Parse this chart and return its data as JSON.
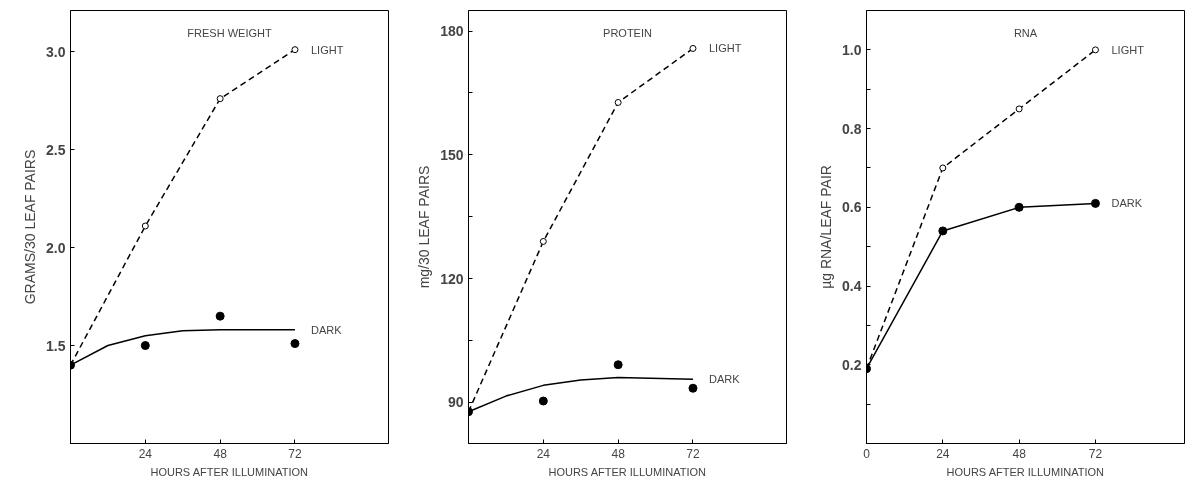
{
  "chart_data": [
    {
      "type": "line",
      "title": "FRESH WEIGHT",
      "xlabel": "HOURS AFTER ILLUMINATION",
      "ylabel": "GRAMS/30 LEAF PAIRS",
      "xlim": [
        0,
        102
      ],
      "ylim": [
        1.0,
        3.21
      ],
      "xticks": [
        24,
        48,
        72
      ],
      "yticks": [
        1.5,
        {
          "value": 2,
          "label": "2.0"
        },
        2.5,
        {
          "value": 3,
          "label": "3.0"
        }
      ],
      "grid": false,
      "series": [
        {
          "name": "LIGHT",
          "color": "#000000",
          "x": [
            0,
            24,
            48,
            72
          ],
          "values": [
            1.4,
            2.11,
            2.76,
            3.01
          ],
          "marker": "circle",
          "line_style": "dashed"
        },
        {
          "type": "scatter",
          "color": "#000000",
          "x": [
            0,
            24,
            48,
            72
          ],
          "values": [
            1.4,
            1.5,
            1.65,
            1.51
          ],
          "marker": "circle"
        },
        {
          "name": "DARK",
          "color": "#000000",
          "x": [
            0,
            12,
            24,
            36,
            48,
            72
          ],
          "values": [
            1.4,
            1.5,
            1.55,
            1.575,
            1.58,
            1.58
          ],
          "marker": "none",
          "line_style": "solid"
        }
      ]
    },
    {
      "type": "line",
      "title": "PROTEIN",
      "xlabel": "HOURS AFTER ILLUMINATION",
      "ylabel": "mg/30 LEAF PAIRS",
      "xlim": [
        0,
        102
      ],
      "ylim": [
        80,
        185
      ],
      "xticks": [
        24,
        48,
        72
      ],
      "yticks": [
        90,
        {
          "value": 105,
          "label": null
        },
        120,
        {
          "value": 135,
          "label": null
        },
        150,
        {
          "value": 165,
          "label": null
        },
        180
      ],
      "grid": false,
      "series": [
        {
          "name": "LIGHT",
          "color": "#000000",
          "x": [
            0,
            24,
            48,
            72
          ],
          "values": [
            87.7,
            129,
            162.7,
            175.8
          ],
          "marker": "circle",
          "line_style": "dashed"
        },
        {
          "type": "scatter",
          "color": "#000000",
          "x": [
            0,
            24,
            48,
            72
          ],
          "values": [
            87.7,
            90.3,
            99.1,
            93.4
          ],
          "marker": "circle"
        },
        {
          "name": "DARK",
          "color": "#000000",
          "x": [
            0,
            12,
            24,
            36,
            48,
            72
          ],
          "values": [
            87.7,
            91.5,
            94.1,
            95.4,
            96,
            95.6
          ],
          "marker": "none",
          "line_style": "solid"
        }
      ]
    },
    {
      "type": "line",
      "title": "RNA",
      "xlabel": "HOURS AFTER ILLUMINATION",
      "ylabel": "µg RNA/LEAF PAIR",
      "xlim": [
        0,
        100
      ],
      "ylim": [
        0,
        1.1
      ],
      "xticks": [
        0,
        24,
        48,
        72
      ],
      "yticks": [
        {
          "value": 0.1,
          "label": null
        },
        0.2,
        {
          "value": 0.3,
          "label": null
        },
        0.4,
        {
          "value": 0.5,
          "label": null
        },
        0.6,
        {
          "value": 0.7,
          "label": null
        },
        0.8,
        {
          "value": 0.9,
          "label": null
        },
        {
          "value": 1,
          "label": "1.0"
        }
      ],
      "grid": false,
      "series": [
        {
          "name": "LIGHT",
          "color": "#000000",
          "x": [
            0,
            24,
            48,
            72
          ],
          "values": [
            0.19,
            0.7,
            0.85,
            1.0
          ],
          "marker": "circle",
          "line_style": "dashed"
        },
        {
          "name": "DARK",
          "color": "#000000",
          "x": [
            0,
            24,
            48,
            72
          ],
          "values": [
            0.19,
            0.54,
            0.6,
            0.61
          ],
          "marker": "circle",
          "line_style": "solid"
        }
      ]
    }
  ]
}
